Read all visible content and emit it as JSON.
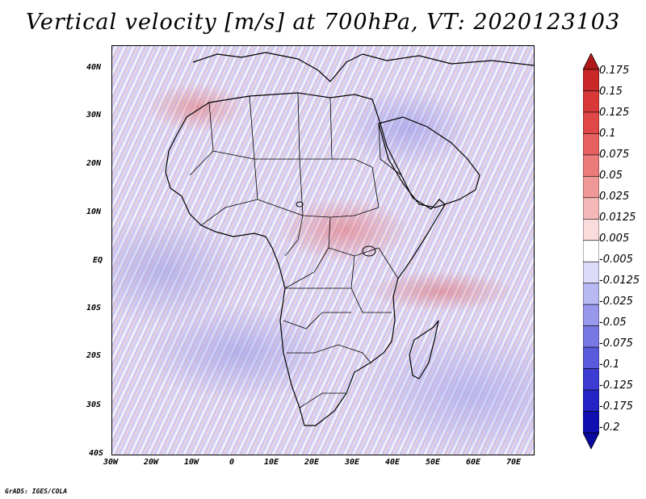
{
  "title": "Vertical velocity [m/s] at 700hPa, VT: 2020123103",
  "credit": "GrADS: IGES/COLA",
  "map": {
    "lat_ticks": [
      "40N",
      "30N",
      "20N",
      "10N",
      "EQ",
      "10S",
      "20S",
      "30S",
      "40S"
    ],
    "lon_ticks": [
      "30W",
      "20W",
      "10W",
      "0",
      "10E",
      "20E",
      "30E",
      "40E",
      "50E",
      "60E",
      "70E"
    ],
    "lon_range": [
      -30,
      75
    ],
    "lat_range": [
      -40,
      45
    ]
  },
  "colorbar": {
    "levels": [
      "0.175",
      "0.15",
      "0.125",
      "0.1",
      "0.075",
      "0.05",
      "0.025",
      "0.0125",
      "0.005",
      "-0.005",
      "-0.0125",
      "-0.025",
      "-0.05",
      "-0.075",
      "-0.1",
      "-0.125",
      "-0.175",
      "-0.2"
    ],
    "colors": [
      "#b01818",
      "#c82828",
      "#d83838",
      "#e04848",
      "#e86060",
      "#ec7a7a",
      "#f09898",
      "#f4b8b8",
      "#fadcdc",
      "#ffffff",
      "#dcdcfa",
      "#b8b8f2",
      "#9898ec",
      "#7878e4",
      "#5a5adc",
      "#3c3cd2",
      "#2424c4",
      "#1010b0",
      "#0a0aa0"
    ]
  }
}
